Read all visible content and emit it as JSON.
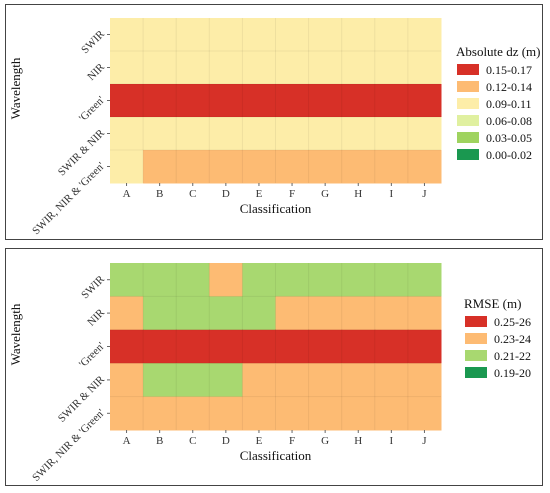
{
  "chart_data": [
    {
      "type": "heatmap",
      "xlabel": "Classification",
      "ylabel": "Wavelength",
      "x_categories": [
        "A",
        "B",
        "C",
        "D",
        "E",
        "F",
        "G",
        "H",
        "I",
        "J"
      ],
      "y_categories": [
        "SWIR",
        "NIR",
        "'Green'",
        "SWIR & NIR",
        "SWIR, NIR & 'Green'"
      ],
      "legend_title": "Absolute dz (m)",
      "legend": [
        {
          "label": "0.15-0.17",
          "color": "#d73027"
        },
        {
          "label": "0.12-0.14",
          "color": "#fdbb73"
        },
        {
          "label": "0.09-0.11",
          "color": "#fdeda8"
        },
        {
          "label": "0.06-0.08",
          "color": "#e0f0a0"
        },
        {
          "label": "0.03-0.05",
          "color": "#9fd35f"
        },
        {
          "label": "0.00-0.02",
          "color": "#1a9850"
        }
      ],
      "cells": [
        [
          2,
          2,
          2,
          2,
          2,
          2,
          2,
          2,
          2,
          2
        ],
        [
          2,
          2,
          2,
          2,
          2,
          2,
          2,
          2,
          2,
          2
        ],
        [
          0,
          0,
          0,
          0,
          0,
          0,
          0,
          0,
          0,
          0
        ],
        [
          2,
          2,
          2,
          2,
          2,
          2,
          2,
          2,
          2,
          2
        ],
        [
          2,
          1,
          1,
          1,
          1,
          1,
          1,
          1,
          1,
          1
        ]
      ]
    },
    {
      "type": "heatmap",
      "xlabel": "Classification",
      "ylabel": "Wavelength",
      "x_categories": [
        "A",
        "B",
        "C",
        "D",
        "E",
        "F",
        "G",
        "H",
        "I",
        "J"
      ],
      "y_categories": [
        "SWIR",
        "NIR",
        "'Green'",
        "SWIR & NIR",
        "SWIR, NIR & 'Green'"
      ],
      "legend_title": "RMSE (m)",
      "legend": [
        {
          "label": "0.25-26",
          "color": "#d73027"
        },
        {
          "label": "0.23-24",
          "color": "#fdbb73"
        },
        {
          "label": "0.21-22",
          "color": "#a8d870"
        },
        {
          "label": "0.19-20",
          "color": "#1a9850"
        }
      ],
      "cells": [
        [
          2,
          2,
          2,
          1,
          2,
          2,
          2,
          2,
          2,
          2
        ],
        [
          1,
          2,
          2,
          2,
          2,
          1,
          1,
          1,
          1,
          1
        ],
        [
          0,
          0,
          0,
          0,
          0,
          0,
          0,
          0,
          0,
          0
        ],
        [
          1,
          2,
          2,
          2,
          1,
          1,
          1,
          1,
          1,
          1
        ],
        [
          1,
          1,
          1,
          1,
          1,
          1,
          1,
          1,
          1,
          1
        ]
      ]
    }
  ]
}
